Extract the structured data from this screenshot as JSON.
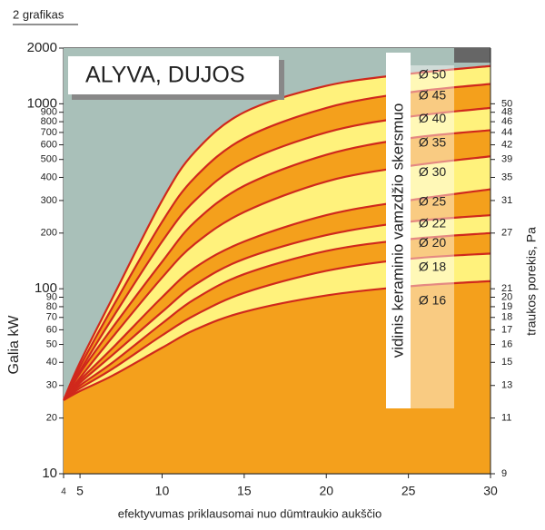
{
  "page_label": "2 grafikas",
  "chart_data": {
    "type": "line",
    "title": "ALYVA, DUJOS",
    "legend_title": "vidinis keraminio vamzdžio skersmuo",
    "ylabel": "Galia   kW",
    "y2label": "traukos porekis, Pa",
    "xlabel": "efektyvumas priklausomai nuo dūmtraukio aukščio",
    "x": [
      4,
      5,
      7,
      10,
      12,
      15,
      20,
      25,
      30
    ],
    "xlim": [
      4,
      30
    ],
    "xticks": [
      4,
      5,
      10,
      15,
      20,
      25,
      30
    ],
    "ylim": [
      10,
      2000
    ],
    "yscale": "log",
    "yticks": [
      2000,
      1000,
      900,
      800,
      700,
      600,
      500,
      400,
      300,
      200,
      100,
      90,
      80,
      70,
      60,
      50,
      40,
      30,
      20,
      10
    ],
    "y2ticks": [
      50,
      48,
      46,
      44,
      42,
      39,
      35,
      31,
      27,
      21,
      20,
      19,
      18,
      17,
      16,
      15,
      13,
      11,
      9
    ],
    "grid": true,
    "line_color": "#d0281c",
    "band_colors": [
      "#f4a01c",
      "#fff27c"
    ],
    "series": [
      {
        "name": "Ø 16",
        "values": [
          25,
          28,
          34,
          48,
          60,
          75,
          92,
          103,
          110
        ]
      },
      {
        "name": "Ø 18",
        "values": [
          25,
          29,
          37,
          56,
          72,
          95,
          125,
          145,
          155
        ]
      },
      {
        "name": "Ø 20",
        "values": [
          25,
          30,
          40,
          65,
          88,
          120,
          160,
          185,
          200
        ]
      },
      {
        "name": "Ø 22",
        "values": [
          25,
          31,
          44,
          75,
          105,
          145,
          195,
          230,
          250
        ]
      },
      {
        "name": "Ø 25",
        "values": [
          25,
          32,
          48,
          90,
          130,
          180,
          250,
          300,
          345
        ]
      },
      {
        "name": "Ø 30",
        "values": [
          25,
          33,
          55,
          115,
          175,
          260,
          380,
          460,
          520
        ]
      },
      {
        "name": "Ø 35",
        "values": [
          25,
          35,
          62,
          140,
          230,
          360,
          530,
          650,
          720
        ]
      },
      {
        "name": "Ø 40",
        "values": [
          25,
          36,
          70,
          180,
          300,
          480,
          700,
          850,
          950
        ]
      },
      {
        "name": "Ø 45",
        "values": [
          25,
          38,
          80,
          230,
          400,
          650,
          950,
          1150,
          1280
        ]
      },
      {
        "name": "Ø 50",
        "values": [
          25,
          40,
          90,
          300,
          550,
          900,
          1250,
          1450,
          1600
        ]
      }
    ]
  }
}
